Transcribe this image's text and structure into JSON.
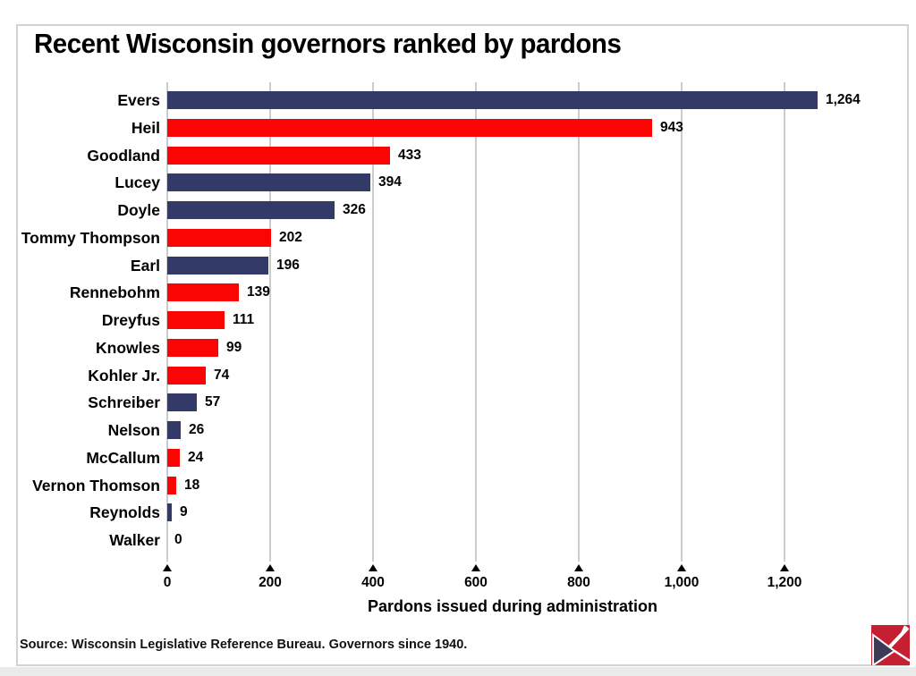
{
  "page": {
    "title": "Recent Wisconsin governors ranked by pardons",
    "source": "Source: Wisconsin Legislative Reference Bureau. Governors since 1940."
  },
  "colors": {
    "navy": "#343a68",
    "red": "#fa0404",
    "gridline": "#cccccc",
    "frame_border": "#d2d2d2",
    "logo_red": "#c51f33",
    "logo_navy": "#3a3a56",
    "text": "#000000"
  },
  "chart_data": {
    "type": "bar",
    "orientation": "horizontal",
    "title": "Recent Wisconsin governors ranked by pardons",
    "xlabel": "Pardons issued during administration",
    "categories": [
      "Evers",
      "Heil",
      "Goodland",
      "Lucey",
      "Doyle",
      "Tommy Thompson",
      "Earl",
      "Rennebohm",
      "Dreyfus",
      "Knowles",
      "Kohler Jr.",
      "Schreiber",
      "Nelson",
      "McCallum",
      "Vernon Thomson",
      "Reynolds",
      "Walker"
    ],
    "values": [
      1264,
      943,
      433,
      394,
      326,
      202,
      196,
      139,
      111,
      99,
      74,
      57,
      26,
      24,
      18,
      9,
      0
    ],
    "value_labels": [
      "1,264",
      "943",
      "433",
      "394",
      "326",
      "202",
      "196",
      "139",
      "111",
      "99",
      "74",
      "57",
      "26",
      "24",
      "18",
      "9",
      "0"
    ],
    "bar_colors": [
      "navy",
      "red",
      "red",
      "navy",
      "navy",
      "red",
      "navy",
      "red",
      "red",
      "red",
      "red",
      "navy",
      "navy",
      "red",
      "red",
      "navy",
      "navy"
    ],
    "xlim": [
      0,
      1300
    ],
    "xticks": {
      "values": [
        0,
        200,
        400,
        600,
        800,
        1000,
        1200
      ],
      "labels": [
        "0",
        "200",
        "400",
        "600",
        "800",
        "1,000",
        "1,200"
      ]
    },
    "grid": "vertical-gridlines",
    "legend": "none"
  }
}
